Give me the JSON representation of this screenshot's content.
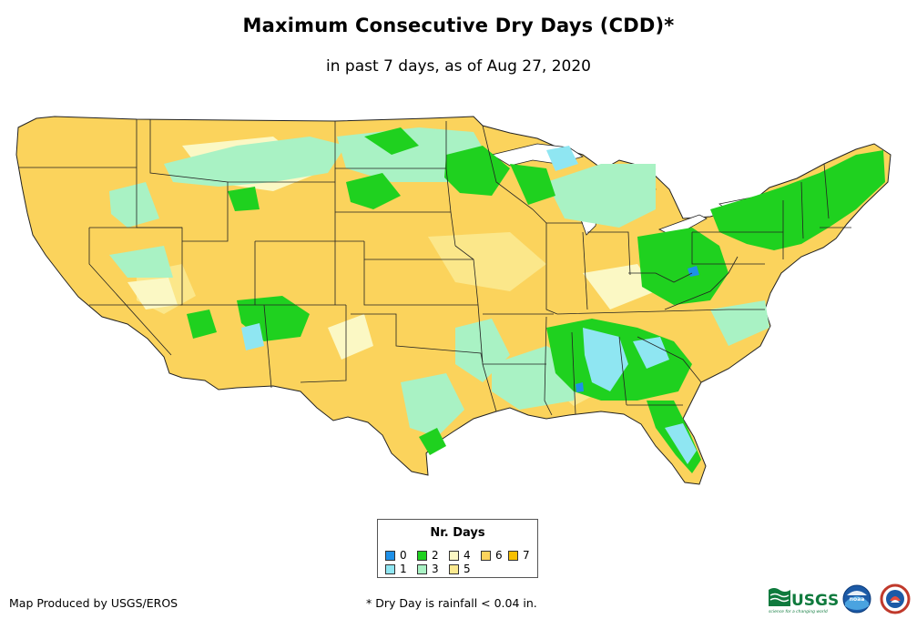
{
  "title": "Maximum Consecutive Dry Days (CDD)*",
  "subtitle": "in past 7 days, as of Aug 27, 2020",
  "legend": {
    "title": "Nr. Days",
    "items": [
      {
        "label": "0",
        "color": "#1e90e8"
      },
      {
        "label": "2",
        "color": "#1fd11f"
      },
      {
        "label": "4",
        "color": "#fbf8c4"
      },
      {
        "label": "6",
        "color": "#fbd35c"
      },
      {
        "label": "7",
        "color": "#f7c000"
      },
      {
        "label": "1",
        "color": "#8fe6f2"
      },
      {
        "label": "3",
        "color": "#a9f2c4"
      },
      {
        "label": "5",
        "color": "#fbe98f"
      }
    ]
  },
  "footer": {
    "credit": "Map Produced by USGS/EROS",
    "note": "* Dry Day is rainfall < 0.04 in."
  },
  "logos": {
    "usgs_text": "USGS",
    "usgs_tagline": "science for a changing world",
    "noaa_text": "noaa"
  },
  "colors": {
    "dry6": "#fbd35c",
    "dry5": "#fbe98f",
    "dry4": "#fbf8c4",
    "dry3": "#a9f2c4",
    "dry2": "#1fd11f",
    "dry1": "#8fe6f2",
    "dry0": "#1e90e8",
    "lake": "#ffffff",
    "border": "#222222"
  }
}
